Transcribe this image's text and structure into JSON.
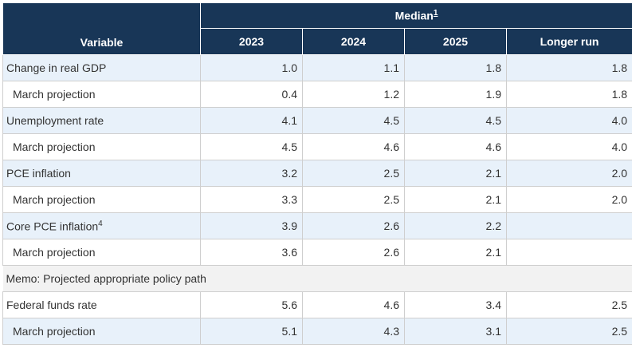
{
  "table": {
    "variable_header": "Variable",
    "group_header": "Median",
    "group_footnote": "1",
    "columns": [
      "2023",
      "2024",
      "2025",
      "Longer run"
    ],
    "rows": [
      {
        "label": "Change in real GDP",
        "sup": "",
        "values": [
          "1.0",
          "1.1",
          "1.8",
          "1.8"
        ],
        "sub": false,
        "shade": true
      },
      {
        "label": "March projection",
        "sup": "",
        "values": [
          "0.4",
          "1.2",
          "1.9",
          "1.8"
        ],
        "sub": true,
        "shade": false
      },
      {
        "label": "Unemployment rate",
        "sup": "",
        "values": [
          "4.1",
          "4.5",
          "4.5",
          "4.0"
        ],
        "sub": false,
        "shade": true
      },
      {
        "label": "March projection",
        "sup": "",
        "values": [
          "4.5",
          "4.6",
          "4.6",
          "4.0"
        ],
        "sub": true,
        "shade": false
      },
      {
        "label": "PCE inflation",
        "sup": "",
        "values": [
          "3.2",
          "2.5",
          "2.1",
          "2.0"
        ],
        "sub": false,
        "shade": true
      },
      {
        "label": "March projection",
        "sup": "",
        "values": [
          "3.3",
          "2.5",
          "2.1",
          "2.0"
        ],
        "sub": true,
        "shade": false
      },
      {
        "label": "Core PCE inflation",
        "sup": "4",
        "values": [
          "3.9",
          "2.6",
          "2.2",
          ""
        ],
        "sub": false,
        "shade": true
      },
      {
        "label": "March projection",
        "sup": "",
        "values": [
          "3.6",
          "2.6",
          "2.1",
          ""
        ],
        "sub": true,
        "shade": false
      }
    ],
    "memo": "Memo: Projected appropriate policy path",
    "policy_rows": [
      {
        "label": "Federal funds rate",
        "values": [
          "5.6",
          "4.6",
          "3.4",
          "2.5"
        ],
        "sub": false,
        "shade": false
      },
      {
        "label": "March projection",
        "values": [
          "5.1",
          "4.3",
          "3.1",
          "2.5"
        ],
        "sub": true,
        "shade": true
      }
    ]
  }
}
